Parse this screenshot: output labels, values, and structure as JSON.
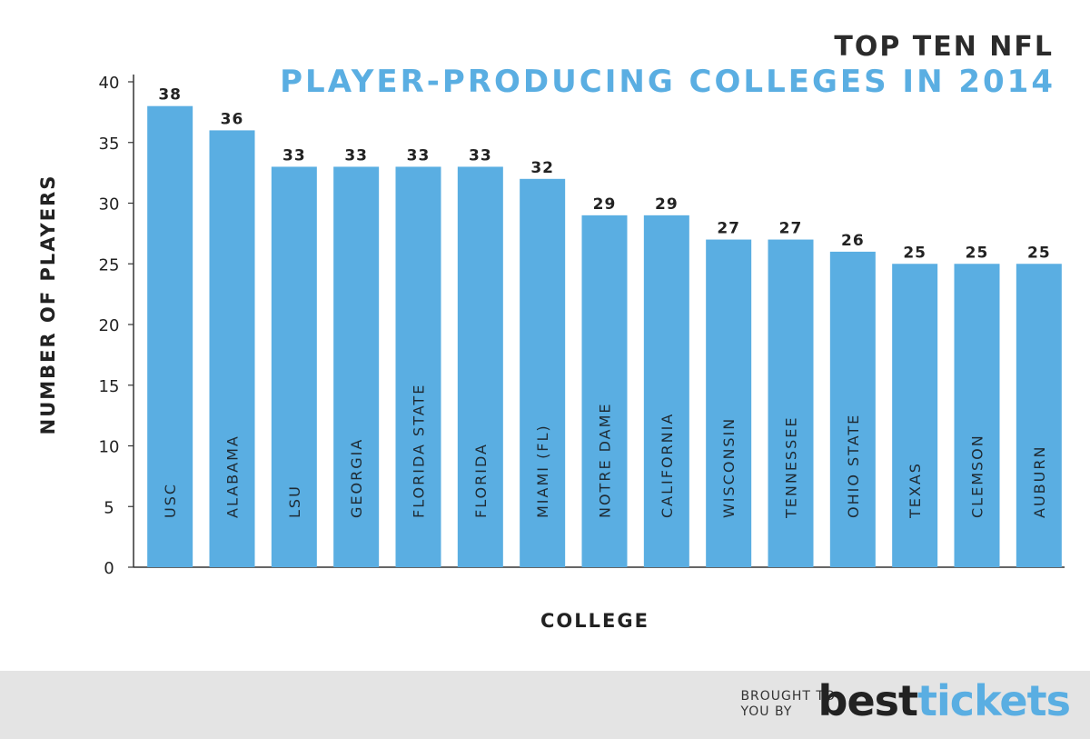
{
  "header": {
    "title_line1": "TOP TEN NFL",
    "title_line2": "PLAYER-PRODUCING COLLEGES IN 2014"
  },
  "chart_data": {
    "type": "bar",
    "title": "TOP TEN NFL PLAYER-PRODUCING COLLEGES IN 2014",
    "xlabel": "COLLEGE",
    "ylabel": "NUMBER OF PLAYERS",
    "ylim": [
      0,
      40
    ],
    "yticks": [
      0,
      5,
      10,
      15,
      20,
      25,
      30,
      35,
      40
    ],
    "categories": [
      "USC",
      "ALABAMA",
      "LSU",
      "GEORGIA",
      "FLORIDA STATE",
      "FLORIDA",
      "MIAMI (FL)",
      "NOTRE DAME",
      "CALIFORNIA",
      "WISCONSIN",
      "TENNESSEE",
      "OHIO STATE",
      "TEXAS",
      "CLEMSON",
      "AUBURN"
    ],
    "values": [
      38,
      36,
      33,
      33,
      33,
      33,
      32,
      29,
      29,
      27,
      27,
      26,
      25,
      25,
      25
    ],
    "bar_color": "#5aaee2",
    "grid": false,
    "data_labels": true
  },
  "footer": {
    "brought_line1": "BROUGHT TO",
    "brought_line2": "YOU BY",
    "brand_part1": "best",
    "brand_part2": "tickets"
  }
}
